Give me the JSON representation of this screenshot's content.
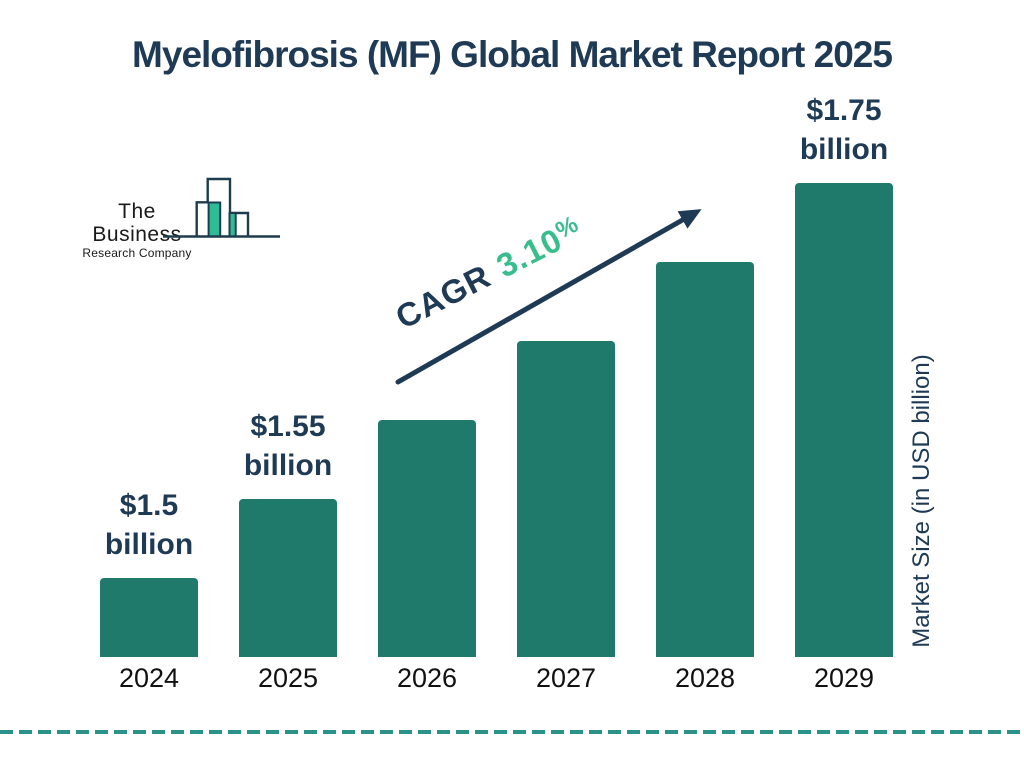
{
  "title": "Myelofibrosis (MF) Global Market Report 2025",
  "logo": {
    "line1": "The Business",
    "line2": "Research Company"
  },
  "cagr": {
    "label": "CAGR",
    "value": "3.10",
    "percent": "%"
  },
  "y_axis_label": "Market Size (in USD billion)",
  "colors": {
    "navy": "#1f3a54",
    "bar_teal": "#1f7a6b",
    "accent_green": "#3abd8e",
    "dash_line": "#2b928a",
    "year_text": "#111111",
    "logo_outline": "#1d3c4e",
    "logo_teal": "#2ebc97"
  },
  "chart_data": {
    "type": "bar",
    "title": "Myelofibrosis (MF) Global Market Report 2025",
    "categories": [
      "2024",
      "2025",
      "2026",
      "2027",
      "2028",
      "2029"
    ],
    "series": [
      {
        "name": "Market Size (in USD billion)",
        "values": [
          1.5,
          1.55,
          null,
          null,
          null,
          1.75
        ]
      }
    ],
    "data_labels": [
      "$1.5 billion",
      "$1.55 billion",
      null,
      null,
      null,
      "$1.75 billion"
    ],
    "annotations": [
      "CAGR 3.10%"
    ],
    "xlabel": "",
    "ylabel": "Market Size (in USD billion)",
    "legend_position": "none",
    "grid": false,
    "bar_color": "#1f7a6b"
  }
}
